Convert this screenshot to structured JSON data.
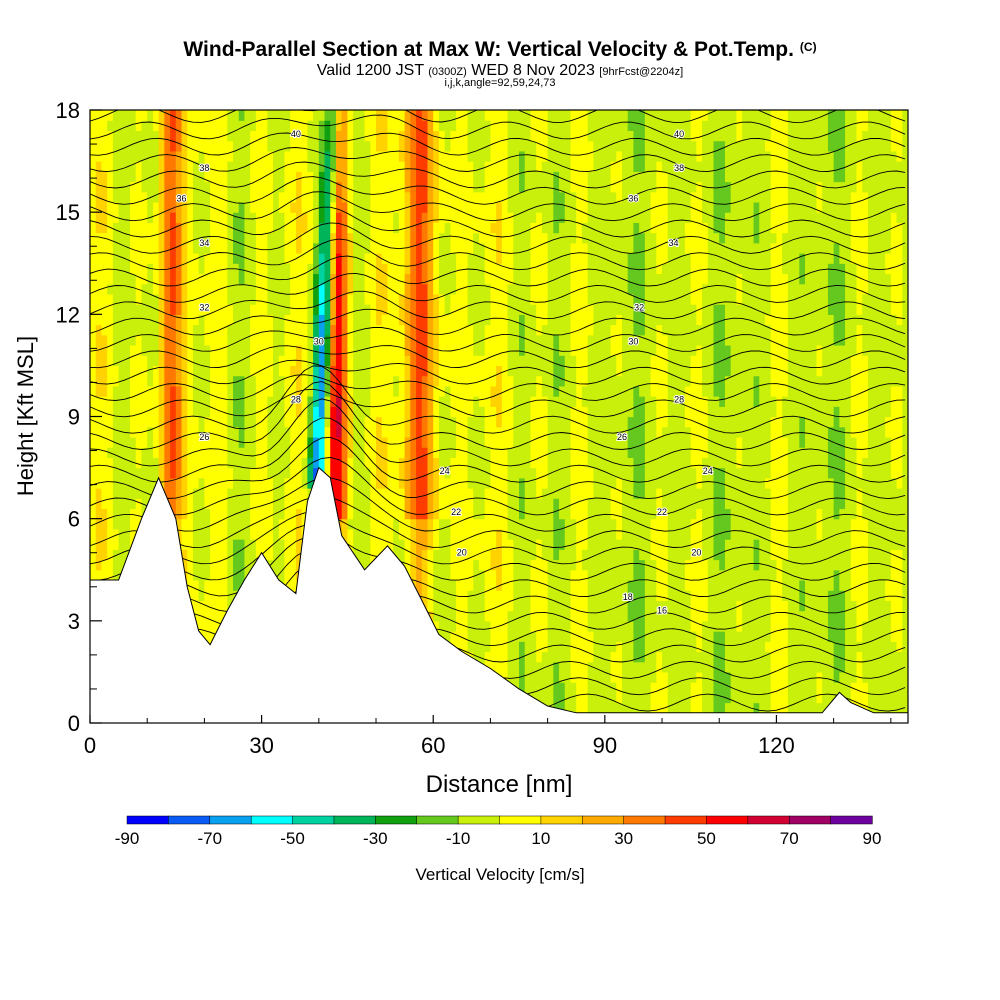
{
  "title": {
    "main": "Wind-Parallel Section at Max W: Vertical Velocity & Pot.Temp.",
    "copyright": "(C)",
    "valid_prefix": "Valid 1200 JST",
    "valid_z": "(0300Z)",
    "valid_date": "WED 8 Nov 2023",
    "forecast": "[9hrFcst@2204z]",
    "params": "i,j,k,angle=92,59,24,73"
  },
  "chart_data": {
    "type": "heatmap",
    "xlabel": "Distance [nm]",
    "ylabel": "Height [Kft MSL]",
    "xlim": [
      0,
      143
    ],
    "ylim": [
      0,
      18
    ],
    "x_ticks": [
      "0",
      "30",
      "60",
      "90",
      "120"
    ],
    "y_ticks": [
      "0",
      "3",
      "6",
      "9",
      "12",
      "15",
      "18"
    ],
    "colorbar": {
      "label": "Vertical Velocity [cm/s]",
      "ticks": [
        "-90",
        "-70",
        "-50",
        "-30",
        "-10",
        "10",
        "30",
        "50",
        "70",
        "90"
      ],
      "bounds": [
        -90,
        90
      ],
      "colors": [
        "#0000ff",
        "#0a5af5",
        "#0aa0f0",
        "#00ffff",
        "#00d2a0",
        "#00b45a",
        "#10a010",
        "#64c81e",
        "#c8f00a",
        "#ffff00",
        "#ffd200",
        "#ffaa00",
        "#ff7800",
        "#ff3c00",
        "#ff0000",
        "#d20032",
        "#a00064",
        "#6e00a0"
      ]
    },
    "theta_labels": [
      "40",
      "38",
      "36",
      "34",
      "32",
      "30",
      "28",
      "26",
      "24",
      "22",
      "20",
      "18",
      "16"
    ],
    "updraft_columns_nm": [
      14,
      43,
      58
    ],
    "downdraft_column_nm": 41,
    "terrain_profile": [
      [
        0,
        4.2
      ],
      [
        5,
        4.2
      ],
      [
        9,
        6
      ],
      [
        12,
        7.2
      ],
      [
        15,
        6
      ],
      [
        17,
        4
      ],
      [
        19,
        2.7
      ],
      [
        21,
        2.3
      ],
      [
        24,
        3.3
      ],
      [
        27,
        4.2
      ],
      [
        30,
        5
      ],
      [
        33,
        4.2
      ],
      [
        36,
        3.8
      ],
      [
        38,
        6.5
      ],
      [
        40,
        7.5
      ],
      [
        42,
        7.2
      ],
      [
        44,
        5.5
      ],
      [
        48,
        4.5
      ],
      [
        52,
        5.2
      ],
      [
        55,
        4.6
      ],
      [
        58,
        3.6
      ],
      [
        61,
        2.6
      ],
      [
        65,
        2.1
      ],
      [
        70,
        1.6
      ],
      [
        75,
        1
      ],
      [
        80,
        0.5
      ],
      [
        85,
        0.3
      ],
      [
        128,
        0.3
      ],
      [
        131,
        0.9
      ],
      [
        133,
        0.6
      ],
      [
        137,
        0.3
      ],
      [
        143,
        0.3
      ]
    ]
  }
}
